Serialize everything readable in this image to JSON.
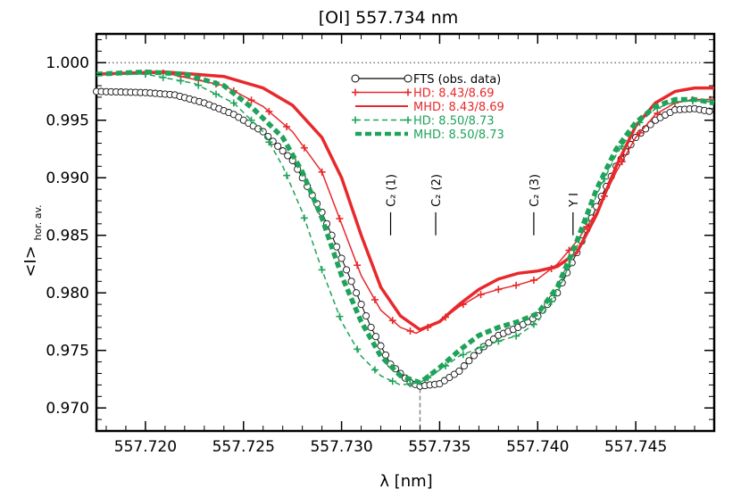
{
  "chart_data": {
    "type": "line",
    "title": "[OI] 557.734 nm",
    "xlabel": "λ [nm]",
    "ylabel_main": "<I>",
    "ylabel_sub": "hor. av.",
    "xlim": [
      557.7175,
      557.749
    ],
    "ylim": [
      0.968,
      1.0025
    ],
    "x_ticks": [
      557.72,
      557.725,
      557.73,
      557.735,
      557.74,
      557.745
    ],
    "x_tick_labels": [
      "557.720",
      "557.725",
      "557.730",
      "557.735",
      "557.740",
      "557.745"
    ],
    "y_ticks": [
      0.97,
      0.975,
      0.98,
      0.985,
      0.99,
      0.995,
      1.0
    ],
    "y_tick_labels": [
      "0.970",
      "0.975",
      "0.980",
      "0.985",
      "0.990",
      "0.995",
      "1.000"
    ],
    "continuum_level": 1.0,
    "line_center": 557.734,
    "line_markers": [
      {
        "label": "C₂ (1)",
        "x": 557.7325,
        "y_top": 0.987,
        "y_bottom": 0.985
      },
      {
        "label": "C₂ (2)",
        "x": 557.7348,
        "y_top": 0.987,
        "y_bottom": 0.985
      },
      {
        "label": "C₂ (3)",
        "x": 557.7398,
        "y_top": 0.987,
        "y_bottom": 0.985
      },
      {
        "label": "Y I",
        "x": 557.7418,
        "y_top": 0.987,
        "y_bottom": 0.985
      }
    ],
    "legend_position": "top-center",
    "series": [
      {
        "name": "FTS (obs. data)",
        "color": "#000000",
        "style": "solid-circles",
        "x": [
          557.7175,
          557.72,
          557.7215,
          557.723,
          557.7245,
          557.726,
          557.7275,
          557.729,
          557.7305,
          557.7315,
          557.7325,
          557.7335,
          557.734,
          557.735,
          557.736,
          557.737,
          557.738,
          557.739,
          557.74,
          557.741,
          557.742,
          557.743,
          557.744,
          557.745,
          557.746,
          557.747,
          557.748,
          557.749
        ],
        "y": [
          0.9975,
          0.9974,
          0.9972,
          0.9965,
          0.9955,
          0.994,
          0.9915,
          0.987,
          0.981,
          0.977,
          0.9738,
          0.9722,
          0.9719,
          0.9721,
          0.9732,
          0.975,
          0.9763,
          0.977,
          0.978,
          0.98,
          0.9835,
          0.9875,
          0.991,
          0.9935,
          0.995,
          0.9959,
          0.996,
          0.9957
        ]
      },
      {
        "name": "HD: 8.43/8.69",
        "color": "#e8282b",
        "style": "solid-plus",
        "x": [
          557.7175,
          557.721,
          557.724,
          557.726,
          557.7275,
          557.729,
          557.73,
          557.731,
          557.732,
          557.733,
          557.7338,
          557.735,
          557.736,
          557.737,
          557.738,
          557.739,
          557.74,
          557.741,
          557.742,
          557.743,
          557.744,
          557.745,
          557.746,
          557.747,
          557.748,
          557.749
        ],
        "y": [
          0.999,
          0.9991,
          0.998,
          0.9962,
          0.994,
          0.9905,
          0.986,
          0.9815,
          0.9785,
          0.977,
          0.9765,
          0.9775,
          0.9788,
          0.9798,
          0.9803,
          0.9807,
          0.9812,
          0.9825,
          0.9845,
          0.987,
          0.9905,
          0.9935,
          0.9955,
          0.9965,
          0.9968,
          0.9968
        ]
      },
      {
        "name": "MHD: 8.43/8.69",
        "color": "#e8282b",
        "style": "thick-solid",
        "x": [
          557.7175,
          557.721,
          557.724,
          557.726,
          557.7275,
          557.729,
          557.73,
          557.731,
          557.732,
          557.733,
          557.734,
          557.735,
          557.736,
          557.737,
          557.738,
          557.739,
          557.74,
          557.741,
          557.742,
          557.743,
          557.744,
          557.745,
          557.746,
          557.747,
          557.748,
          557.749
        ],
        "y": [
          0.999,
          0.9992,
          0.9988,
          0.9978,
          0.9963,
          0.9935,
          0.99,
          0.985,
          0.9805,
          0.978,
          0.9768,
          0.9775,
          0.979,
          0.9803,
          0.9812,
          0.9817,
          0.9819,
          0.9823,
          0.9835,
          0.9868,
          0.991,
          0.9945,
          0.9965,
          0.9975,
          0.9978,
          0.9978
        ]
      },
      {
        "name": "HD: 8.50/8.73",
        "color": "#1fa35a",
        "style": "dashed-plus",
        "x": [
          557.7175,
          557.72,
          557.7225,
          557.7245,
          557.726,
          557.727,
          557.728,
          557.729,
          557.73,
          557.731,
          557.732,
          557.733,
          557.734,
          557.735,
          557.736,
          557.737,
          557.738,
          557.739,
          557.74,
          557.741,
          557.742,
          557.743,
          557.744,
          557.745,
          557.746,
          557.747,
          557.748,
          557.749
        ],
        "y": [
          0.999,
          0.999,
          0.9982,
          0.9965,
          0.994,
          0.991,
          0.987,
          0.982,
          0.9775,
          0.9745,
          0.9728,
          0.972,
          0.9722,
          0.9733,
          0.9745,
          0.9752,
          0.9758,
          0.9763,
          0.9775,
          0.98,
          0.984,
          0.9885,
          0.992,
          0.9945,
          0.996,
          0.9966,
          0.9967,
          0.9966
        ]
      },
      {
        "name": "MHD: 8.50/8.73",
        "color": "#1fa35a",
        "style": "thick-dashed",
        "x": [
          557.7175,
          557.72,
          557.722,
          557.724,
          557.7255,
          557.727,
          557.728,
          557.729,
          557.73,
          557.731,
          557.732,
          557.733,
          557.734,
          557.735,
          557.736,
          557.737,
          557.738,
          557.739,
          557.74,
          557.741,
          557.742,
          557.743,
          557.744,
          557.745,
          557.746,
          557.747,
          557.748,
          557.749
        ],
        "y": [
          0.999,
          0.9992,
          0.999,
          0.998,
          0.996,
          0.9935,
          0.9905,
          0.9865,
          0.9815,
          0.9775,
          0.9745,
          0.9728,
          0.9722,
          0.9735,
          0.975,
          0.9763,
          0.977,
          0.9775,
          0.9782,
          0.9805,
          0.9845,
          0.989,
          0.9925,
          0.9948,
          0.9962,
          0.9968,
          0.9968,
          0.9965
        ]
      }
    ]
  }
}
